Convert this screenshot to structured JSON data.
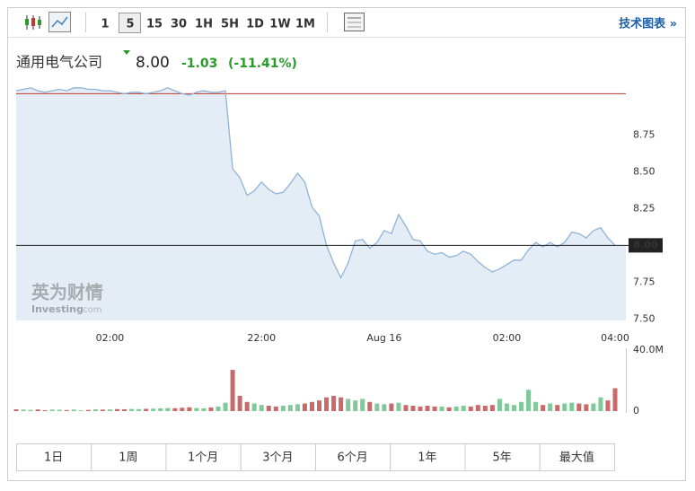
{
  "toolbar": {
    "intervals": [
      "1",
      "5",
      "15",
      "30",
      "1H",
      "5H",
      "1D",
      "1W",
      "1M"
    ],
    "active": "5",
    "link": "技术图表 »"
  },
  "header": {
    "name": "通用电气公司",
    "price": "8.00",
    "change": "-1.03",
    "change_percent": "(-11.41%)"
  },
  "watermark": {
    "brand": "英为财情",
    "site": "Investing",
    ".com": ".com"
  },
  "range_buttons": [
    "1日",
    "1周",
    "1个月",
    "3个月",
    "6个月",
    "1年",
    "5年",
    "最大值"
  ],
  "chart_data": {
    "type": "area",
    "line_color": "#8fb3d9",
    "fill_color": "#e4edf6",
    "values": [
      9.05,
      9.06,
      9.07,
      9.05,
      9.04,
      9.05,
      9.06,
      9.05,
      9.07,
      9.07,
      9.06,
      9.06,
      9.05,
      9.05,
      9.04,
      9.03,
      9.04,
      9.04,
      9.03,
      9.04,
      9.05,
      9.07,
      9.05,
      9.03,
      9.02,
      9.04,
      9.05,
      9.04,
      9.04,
      9.05,
      8.52,
      8.46,
      8.34,
      8.37,
      8.43,
      8.38,
      8.35,
      8.36,
      8.42,
      8.49,
      8.43,
      8.26,
      8.2,
      8.0,
      7.88,
      7.78,
      7.88,
      8.03,
      8.04,
      7.98,
      8.02,
      8.1,
      8.08,
      8.21,
      8.13,
      8.04,
      8.03,
      7.96,
      7.94,
      7.95,
      7.92,
      7.93,
      7.96,
      7.94,
      7.89,
      7.85,
      7.82,
      7.84,
      7.87,
      7.9,
      7.9,
      7.97,
      8.02,
      7.99,
      8.02,
      7.99,
      8.02,
      8.09,
      8.08,
      8.05,
      8.1,
      8.12,
      8.05,
      8.0
    ],
    "xlim": [
      0,
      83
    ],
    "xticks": [
      {
        "value": 13,
        "label": "02:00"
      },
      {
        "value": 34,
        "label": "22:00"
      },
      {
        "value": 51,
        "label": "Aug 16"
      },
      {
        "value": 68,
        "label": "02:00"
      },
      {
        "value": 83,
        "label": "04:00"
      }
    ],
    "ylim": [
      7.49,
      9.13
    ],
    "yticks": [
      {
        "value": 7.5,
        "label": "7.50"
      },
      {
        "value": 7.75,
        "label": "7.75"
      },
      {
        "value": 8.25,
        "label": "8.25"
      },
      {
        "value": 8.5,
        "label": "8.50"
      },
      {
        "value": 8.75,
        "label": "8.75"
      }
    ],
    "previous_close": 9.03,
    "previous_close_color": "#c0392b",
    "current_price": {
      "value": 8.0,
      "label": "8.00"
    },
    "volume": {
      "values": [
        1200000,
        1000000,
        800000,
        1100000,
        600000,
        1000000,
        900000,
        700000,
        1000000,
        500000,
        800000,
        1200000,
        1000000,
        1100000,
        1300000,
        1200000,
        1400000,
        1300000,
        1500000,
        1600000,
        1800000,
        2000000,
        1900000,
        2200000,
        2500000,
        2000000,
        1800000,
        2400000,
        3000000,
        5500000,
        27000000,
        10000000,
        6000000,
        5000000,
        4000000,
        3500000,
        3000000,
        3500000,
        4000000,
        4500000,
        5000000,
        6000000,
        7000000,
        9000000,
        10000000,
        9000000,
        8000000,
        7000000,
        8000000,
        6000000,
        5000000,
        4500000,
        5000000,
        5500000,
        4000000,
        3500000,
        3000000,
        3500000,
        3000000,
        3000000,
        2500000,
        3000000,
        3500000,
        3000000,
        4000000,
        3500000,
        4000000,
        8000000,
        5000000,
        4000000,
        6000000,
        14000000,
        6000000,
        4000000,
        5000000,
        4000000,
        5000000,
        5500000,
        5000000,
        4500000,
        5000000,
        9000000,
        7000000,
        15000000
      ],
      "ylim": [
        0,
        40000000
      ],
      "yticks": [
        {
          "value": 40000000,
          "label": "40.0M"
        },
        0
      ],
      "up_color": "#7fc99a",
      "down_color": "#c96a6a"
    }
  }
}
